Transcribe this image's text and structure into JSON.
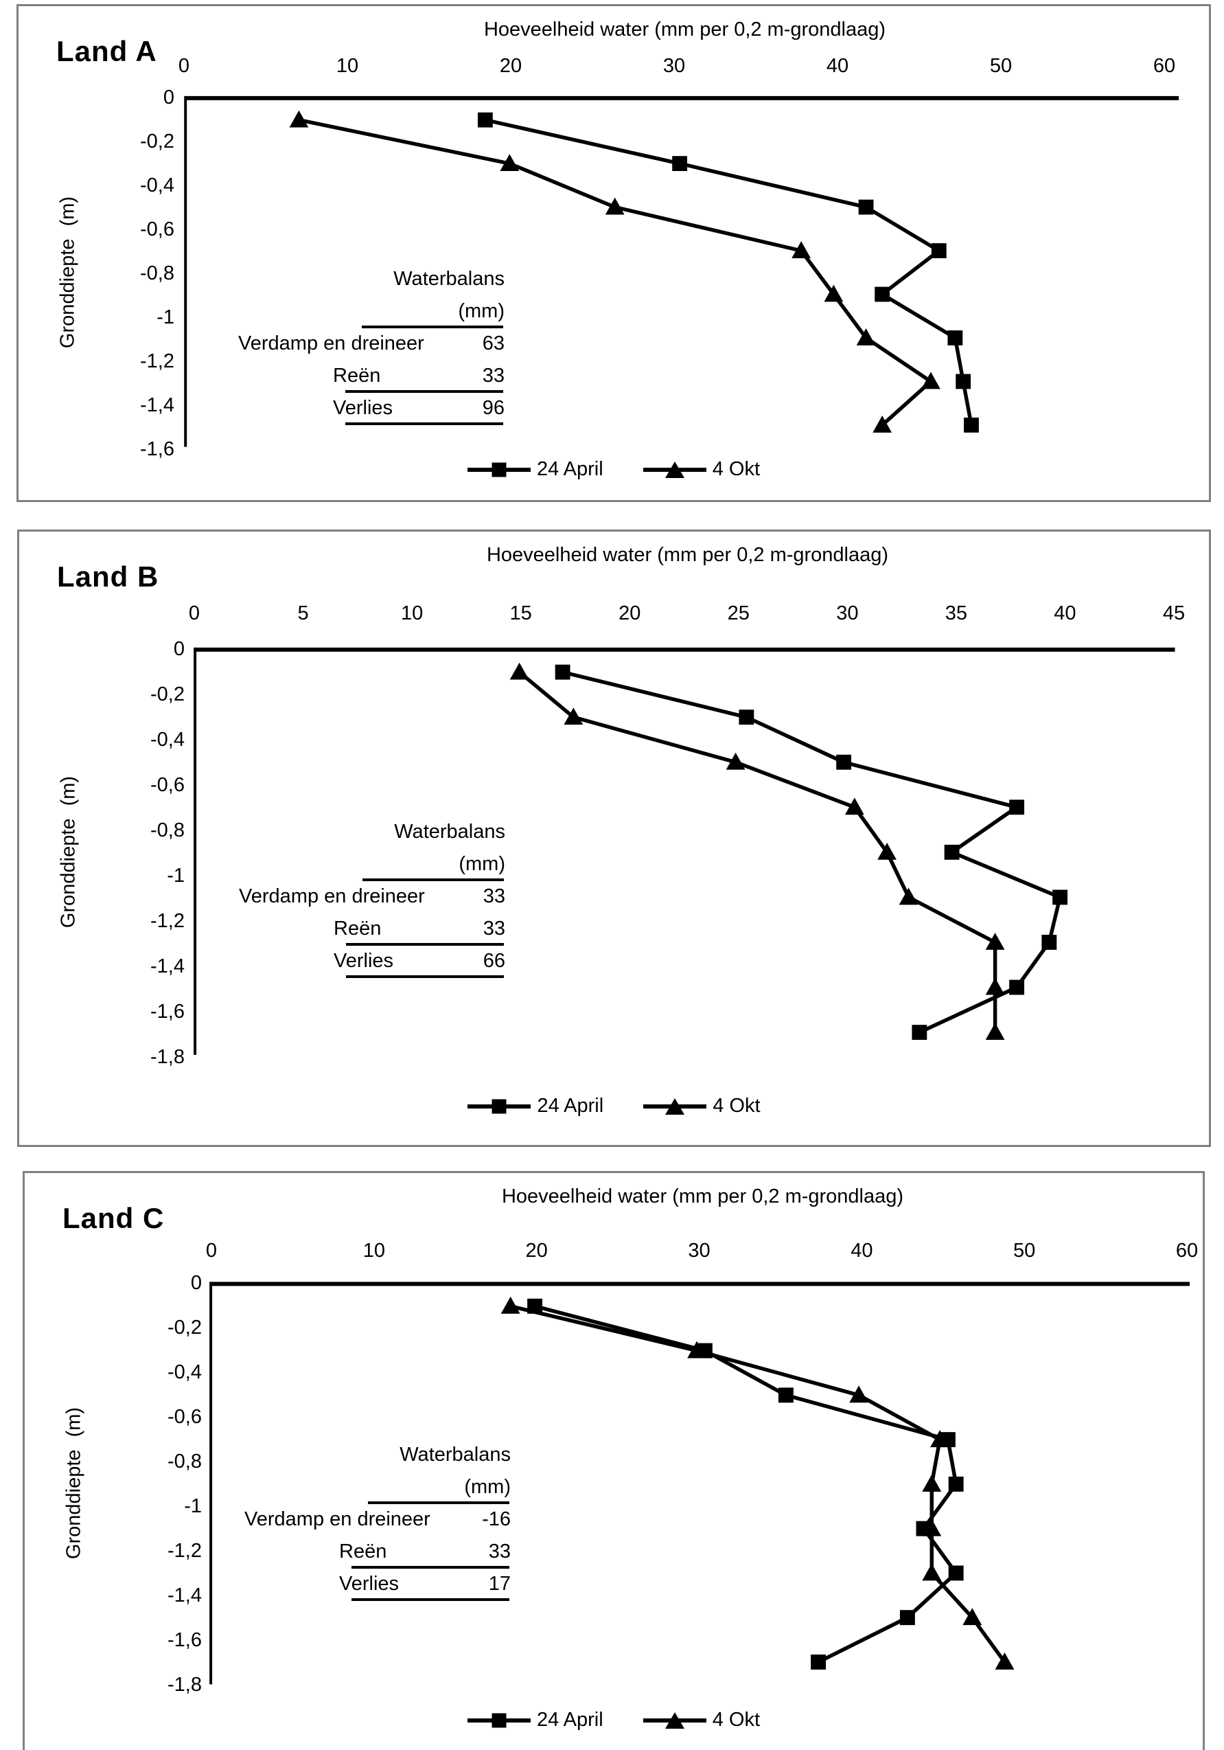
{
  "chart_data": [
    {
      "id": "land-a",
      "type": "line",
      "title": "Land A",
      "xlabel": "Hoeveelheid water (mm per 0,2 m-grondlaag)",
      "ylabel": "Gronddiepte (m)",
      "xlim": [
        0,
        60
      ],
      "ylim": [
        -1.6,
        0
      ],
      "grid": false,
      "legend_position": "bottom",
      "x_ticks": [
        {
          "label": "0",
          "value": 0
        },
        {
          "label": "10",
          "value": 10
        },
        {
          "label": "20",
          "value": 20
        },
        {
          "label": "30",
          "value": 30
        },
        {
          "label": "40",
          "value": 40
        },
        {
          "label": "50",
          "value": 50
        },
        {
          "label": "60",
          "value": 60
        }
      ],
      "y_ticks": [
        {
          "label": "0",
          "value": 0
        },
        {
          "label": "-0,2",
          "value": -0.2
        },
        {
          "label": "-0,4",
          "value": -0.4
        },
        {
          "label": "-0,6",
          "value": -0.6
        },
        {
          "label": "-0,8",
          "value": -0.8
        },
        {
          "label": "-1",
          "value": -1
        },
        {
          "label": "-1,2",
          "value": -1.2
        },
        {
          "label": "-1,4",
          "value": -1.4
        },
        {
          "label": "-1,6",
          "value": -1.6
        }
      ],
      "series": [
        {
          "name": "24 April",
          "marker": "square",
          "points": [
            {
              "depth": -0.1,
              "value": 18.5
            },
            {
              "depth": -0.3,
              "value": 30.5
            },
            {
              "depth": -0.5,
              "value": 42
            },
            {
              "depth": -0.7,
              "value": 46.5
            },
            {
              "depth": -0.9,
              "value": 43
            },
            {
              "depth": -1.1,
              "value": 47.5
            },
            {
              "depth": -1.3,
              "value": 48
            },
            {
              "depth": -1.5,
              "value": 48.5
            }
          ]
        },
        {
          "name": "4 Okt",
          "marker": "triangle",
          "points": [
            {
              "depth": -0.1,
              "value": 7
            },
            {
              "depth": -0.3,
              "value": 20
            },
            {
              "depth": -0.5,
              "value": 26.5
            },
            {
              "depth": -0.7,
              "value": 38
            },
            {
              "depth": -0.9,
              "value": 40
            },
            {
              "depth": -1.1,
              "value": 42
            },
            {
              "depth": -1.3,
              "value": 46
            },
            {
              "depth": -1.5,
              "value": 43
            }
          ]
        }
      ],
      "waterbalans": {
        "title": "Waterbalans",
        "unit": "(mm)",
        "rows": [
          {
            "label": "Verdamp en dreineer",
            "value": "63"
          },
          {
            "label": "Reën",
            "value": "33"
          },
          {
            "label": "Verlies",
            "value": "96"
          }
        ]
      },
      "legend": [
        "24 April",
        "4 Okt"
      ]
    },
    {
      "id": "land-b",
      "type": "line",
      "title": "Land B",
      "xlabel": "Hoeveelheid water (mm per 0,2 m-grondlaag)",
      "ylabel": "Gronddiepte (m)",
      "xlim": [
        0,
        45
      ],
      "ylim": [
        -1.8,
        0
      ],
      "grid": false,
      "legend_position": "bottom",
      "x_ticks": [
        {
          "label": "0",
          "value": 0
        },
        {
          "label": "5",
          "value": 5
        },
        {
          "label": "10",
          "value": 10
        },
        {
          "label": "15",
          "value": 15
        },
        {
          "label": "20",
          "value": 20
        },
        {
          "label": "25",
          "value": 25
        },
        {
          "label": "30",
          "value": 30
        },
        {
          "label": "35",
          "value": 35
        },
        {
          "label": "40",
          "value": 40
        },
        {
          "label": "45",
          "value": 45
        }
      ],
      "y_ticks": [
        {
          "label": "0",
          "value": 0
        },
        {
          "label": "-0,2",
          "value": -0.2
        },
        {
          "label": "-0,4",
          "value": -0.4
        },
        {
          "label": "-0,6",
          "value": -0.6
        },
        {
          "label": "-0,8",
          "value": -0.8
        },
        {
          "label": "-1",
          "value": -1
        },
        {
          "label": "-1,2",
          "value": -1.2
        },
        {
          "label": "-1,4",
          "value": -1.4
        },
        {
          "label": "-1,6",
          "value": -1.6
        },
        {
          "label": "-1,8",
          "value": -1.8
        }
      ],
      "series": [
        {
          "name": "24 April",
          "marker": "square",
          "points": [
            {
              "depth": -0.1,
              "value": 17
            },
            {
              "depth": -0.3,
              "value": 25.5
            },
            {
              "depth": -0.5,
              "value": 30
            },
            {
              "depth": -0.7,
              "value": 38
            },
            {
              "depth": -0.9,
              "value": 35
            },
            {
              "depth": -1.1,
              "value": 40
            },
            {
              "depth": -1.3,
              "value": 39.5
            },
            {
              "depth": -1.5,
              "value": 38
            },
            {
              "depth": -1.7,
              "value": 33.5
            }
          ]
        },
        {
          "name": "4 Okt",
          "marker": "triangle",
          "points": [
            {
              "depth": -0.1,
              "value": 15
            },
            {
              "depth": -0.3,
              "value": 17.5
            },
            {
              "depth": -0.5,
              "value": 25
            },
            {
              "depth": -0.7,
              "value": 30.5
            },
            {
              "depth": -0.9,
              "value": 32
            },
            {
              "depth": -1.1,
              "value": 33
            },
            {
              "depth": -1.3,
              "value": 37
            },
            {
              "depth": -1.5,
              "value": 37
            },
            {
              "depth": -1.7,
              "value": 37
            }
          ]
        }
      ],
      "waterbalans": {
        "title": "Waterbalans",
        "unit": "(mm)",
        "rows": [
          {
            "label": "Verdamp en dreineer",
            "value": "33"
          },
          {
            "label": "Reën",
            "value": "33"
          },
          {
            "label": "Verlies",
            "value": "66"
          }
        ]
      },
      "legend": [
        "24 April",
        "4 Okt"
      ]
    },
    {
      "id": "land-c",
      "type": "line",
      "title": "Land C",
      "xlabel": "Hoeveelheid water (mm per 0,2 m-grondlaag)",
      "ylabel": "Gronddiepte (m)",
      "xlim": [
        0,
        60
      ],
      "ylim": [
        -1.8,
        0
      ],
      "grid": false,
      "legend_position": "bottom",
      "x_ticks": [
        {
          "label": "0",
          "value": 0
        },
        {
          "label": "10",
          "value": 10
        },
        {
          "label": "20",
          "value": 20
        },
        {
          "label": "30",
          "value": 30
        },
        {
          "label": "40",
          "value": 40
        },
        {
          "label": "50",
          "value": 50
        },
        {
          "label": "60",
          "value": 60
        }
      ],
      "y_ticks": [
        {
          "label": "0",
          "value": 0
        },
        {
          "label": "-0,2",
          "value": -0.2
        },
        {
          "label": "-0,4",
          "value": -0.4
        },
        {
          "label": "-0,6",
          "value": -0.6
        },
        {
          "label": "-0,8",
          "value": -0.8
        },
        {
          "label": "-1",
          "value": -1
        },
        {
          "label": "-1,2",
          "value": -1.2
        },
        {
          "label": "-1,4",
          "value": -1.4
        },
        {
          "label": "-1,6",
          "value": -1.6
        },
        {
          "label": "-1,8",
          "value": -1.8
        }
      ],
      "series": [
        {
          "name": "24 April",
          "marker": "square",
          "points": [
            {
              "depth": -0.1,
              "value": 20
            },
            {
              "depth": -0.3,
              "value": 30.5
            },
            {
              "depth": -0.5,
              "value": 35.5
            },
            {
              "depth": -0.7,
              "value": 45.5
            },
            {
              "depth": -0.9,
              "value": 46
            },
            {
              "depth": -1.1,
              "value": 44
            },
            {
              "depth": -1.3,
              "value": 46
            },
            {
              "depth": -1.5,
              "value": 43
            },
            {
              "depth": -1.7,
              "value": 37.5
            }
          ]
        },
        {
          "name": "4 Okt",
          "marker": "triangle",
          "points": [
            {
              "depth": -0.1,
              "value": 18.5
            },
            {
              "depth": -0.3,
              "value": 30
            },
            {
              "depth": -0.5,
              "value": 40
            },
            {
              "depth": -0.7,
              "value": 45
            },
            {
              "depth": -0.9,
              "value": 44.5
            },
            {
              "depth": -1.1,
              "value": 44.5
            },
            {
              "depth": -1.3,
              "value": 44.5
            },
            {
              "depth": -1.5,
              "value": 47
            },
            {
              "depth": -1.7,
              "value": 49
            }
          ]
        }
      ],
      "waterbalans": {
        "title": "Waterbalans",
        "unit": "(mm)",
        "rows": [
          {
            "label": "Verdamp en dreineer",
            "value": "-16"
          },
          {
            "label": "Reën",
            "value": "33"
          },
          {
            "label": "Verlies",
            "value": "17"
          }
        ]
      },
      "legend": [
        "24 April",
        "4 Okt"
      ]
    }
  ]
}
